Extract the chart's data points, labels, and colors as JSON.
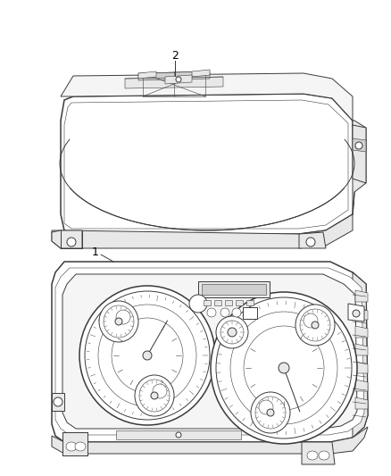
{
  "background_color": "#ffffff",
  "fig_width": 4.38,
  "fig_height": 5.33,
  "dpi": 100,
  "label1": "1",
  "label2": "2",
  "lc": "#3a3a3a",
  "lw": 0.7,
  "lw_thick": 1.1,
  "lw_thin": 0.4,
  "fc_light": "#f5f5f5",
  "fc_mid": "#e8e8e8",
  "fc_dark": "#d0d0d0",
  "fc_white": "#ffffff"
}
